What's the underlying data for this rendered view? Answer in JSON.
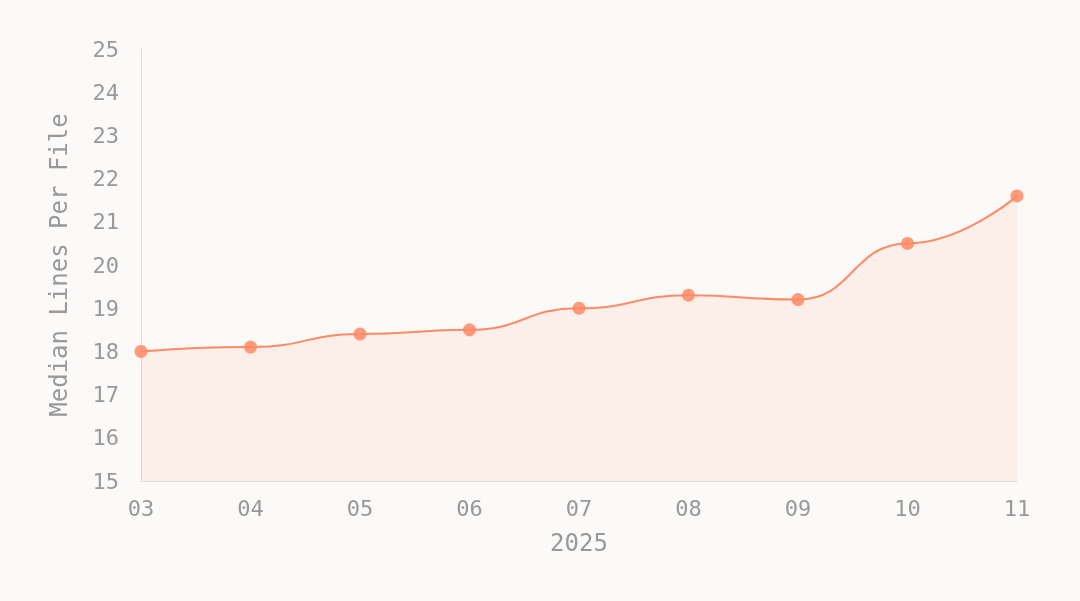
{
  "chart_data": {
    "type": "area",
    "xlabel": "2025",
    "ylabel": "Median Lines Per File",
    "categories": [
      "03",
      "04",
      "05",
      "06",
      "07",
      "08",
      "09",
      "10",
      "11"
    ],
    "series": [
      {
        "color": "#ff8a65",
        "values": [
          18.0,
          18.1,
          18.4,
          18.5,
          19.0,
          19.3,
          19.2,
          20.5,
          21.6
        ]
      }
    ],
    "ylim": [
      15,
      25
    ],
    "yticks": [
      15,
      16,
      17,
      18,
      19,
      20,
      21,
      22,
      23,
      24,
      25
    ],
    "grid": false,
    "marker": "circle"
  }
}
